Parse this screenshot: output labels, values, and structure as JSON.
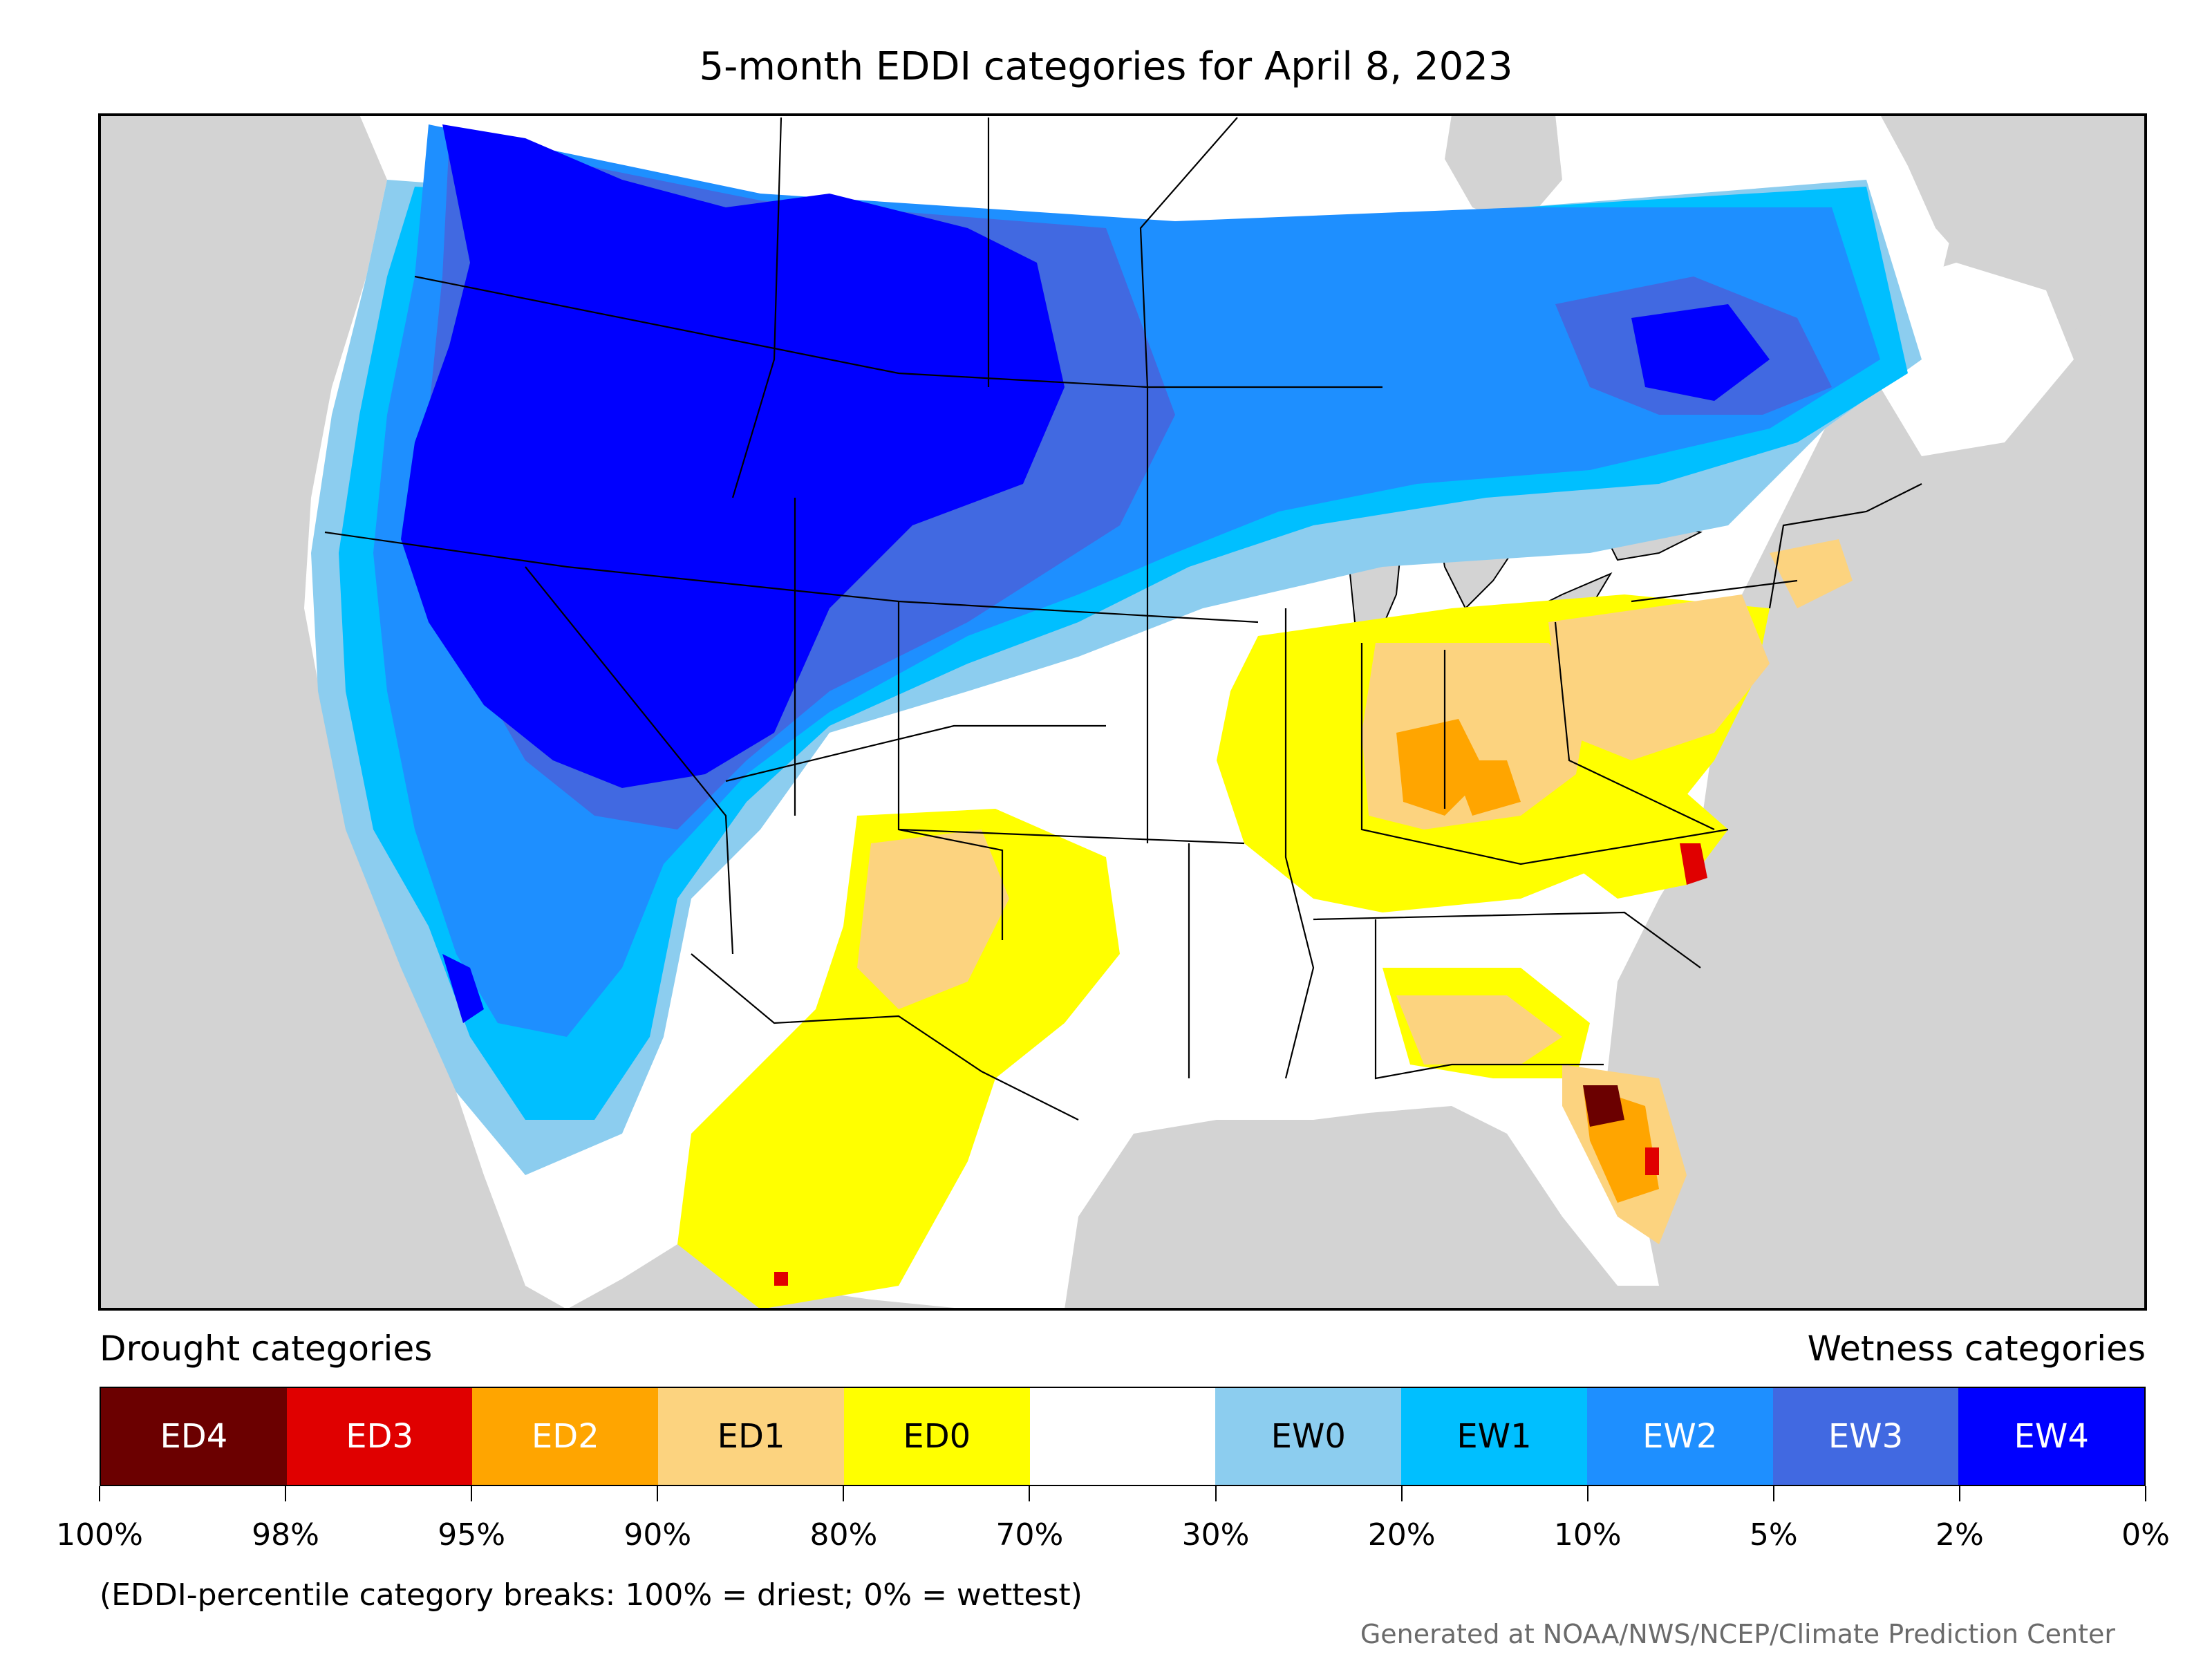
{
  "title": "5-month EDDI categories for April 8, 2023",
  "legend": {
    "drought_heading": "Drought categories",
    "wetness_heading": "Wetness categories",
    "categories": [
      {
        "label": "ED4",
        "color": "#6b0000",
        "text_color": "#ffffff"
      },
      {
        "label": "ED3",
        "color": "#e00000",
        "text_color": "#ffffff"
      },
      {
        "label": "ED2",
        "color": "#ffa500",
        "text_color": "#ffffff"
      },
      {
        "label": "ED1",
        "color": "#fcd37f",
        "text_color": "#000000"
      },
      {
        "label": "ED0",
        "color": "#ffff00",
        "text_color": "#000000"
      },
      {
        "label": "",
        "color": "#ffffff",
        "text_color": "#000000"
      },
      {
        "label": "EW0",
        "color": "#8ccdef",
        "text_color": "#000000"
      },
      {
        "label": "EW1",
        "color": "#00bfff",
        "text_color": "#000000"
      },
      {
        "label": "EW2",
        "color": "#1e8fff",
        "text_color": "#ffffff"
      },
      {
        "label": "EW3",
        "color": "#4169e1",
        "text_color": "#ffffff"
      },
      {
        "label": "EW4",
        "color": "#0000ff",
        "text_color": "#ffffff"
      }
    ],
    "breaks": [
      "100%",
      "98%",
      "95%",
      "90%",
      "80%",
      "70%",
      "30%",
      "20%",
      "10%",
      "5%",
      "2%",
      "0%"
    ]
  },
  "footnote": "(EDDI-percentile category breaks: 100% = driest; 0% = wettest)",
  "credit": "Generated at NOAA/NWS/NCEP/Climate Prediction Center",
  "colors": {
    "background_land_outside": "#d3d3d3",
    "water": "#d3d3d3",
    "border": "#000000"
  }
}
